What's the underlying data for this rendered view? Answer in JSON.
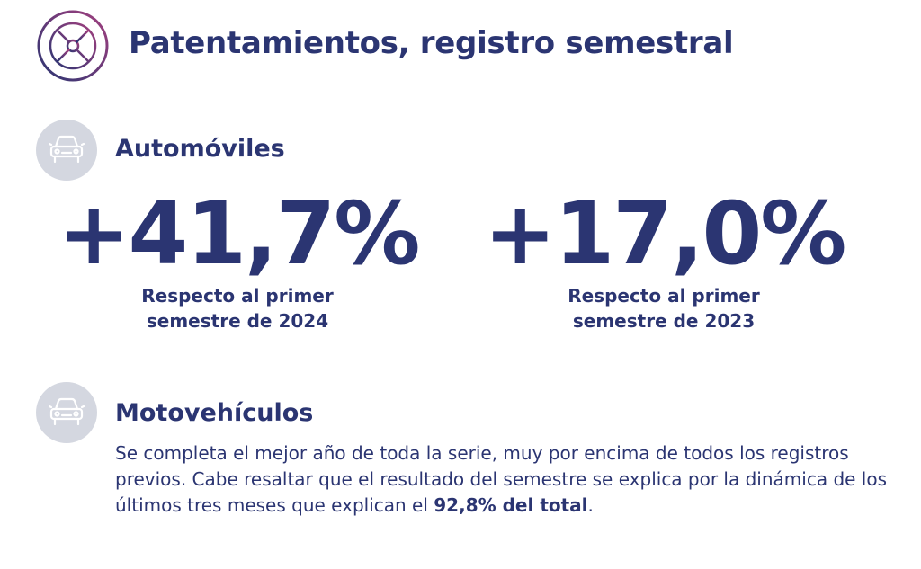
{
  "header": {
    "title": "Patentamientos, registro semestral",
    "logo_icon": "wheel-icon"
  },
  "autos": {
    "title": "Automóviles",
    "icon": "car-icon",
    "stats": [
      {
        "value": "+41,7%",
        "caption": "Respecto al primer semestre de 2024"
      },
      {
        "value": "+17,0%",
        "caption": "Respecto al primer semestre de 2023"
      }
    ]
  },
  "motos": {
    "title": "Motovehículos",
    "icon": "car-icon",
    "text_before": "Se completa el mejor año de toda la serie, muy por encima de todos los registros previos. Cabe resaltar que el resultado del semestre se explica por la dinámica de los últimos tres meses que explican el ",
    "text_bold": "92,8% del total",
    "text_after": "."
  },
  "colors": {
    "primary": "#2b3572",
    "icon_bg": "#d4d7e0",
    "logo_gradient_start": "#2b3572",
    "logo_gradient_end": "#a3407f"
  }
}
